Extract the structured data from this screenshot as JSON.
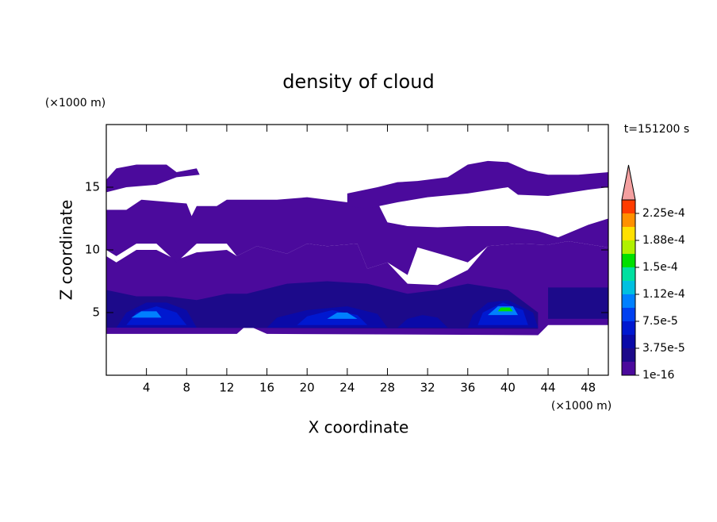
{
  "chart_data": {
    "type": "contour",
    "title": "density of cloud",
    "x_label": "X coordinate",
    "y_label": "Z coordinate",
    "x_unit": "(×1000 m)",
    "y_unit": "(×1000 m)",
    "time_label": "t=151200 s",
    "xlim": [
      0,
      50
    ],
    "ylim": [
      0,
      20
    ],
    "xticks": [
      4,
      8,
      12,
      16,
      20,
      24,
      28,
      32,
      36,
      40,
      44,
      48
    ],
    "yticks": [
      5,
      10,
      15
    ],
    "colorbar": {
      "levels": [
        1e-16,
        1.875e-05,
        3.75e-05,
        5.625e-05,
        7.5e-05,
        9.375e-05,
        0.0001125,
        0.00013125,
        0.00015,
        0.00016875,
        0.0001875,
        0.00020625,
        0.000225,
        0.00024375
      ],
      "colors": [
        "#4b0a9c",
        "#1c0a8a",
        "#0a0aa8",
        "#0018d0",
        "#0040f0",
        "#0080ff",
        "#00c0e0",
        "#00e0a0",
        "#00e000",
        "#b0f000",
        "#ffe000",
        "#ff9000",
        "#ff3c00"
      ],
      "extend_color": "#f4a0a0",
      "ticks": [
        {
          "value": 1e-16,
          "label": "1e-16"
        },
        {
          "value": 3.75e-05,
          "label": "3.75e-5"
        },
        {
          "value": 7.5e-05,
          "label": "7.5e-5"
        },
        {
          "value": 0.0001125,
          "label": "1.12e-4"
        },
        {
          "value": 0.00015,
          "label": "1.5e-4"
        },
        {
          "value": 0.0001875,
          "label": "1.88e-4"
        },
        {
          "value": 0.000225,
          "label": "2.25e-4"
        }
      ]
    },
    "regions": [
      {
        "value": 1e-16,
        "x": [
          0,
          13,
          14,
          16,
          43,
          44,
          50,
          50,
          46,
          44,
          41,
          38,
          36,
          33,
          30,
          28,
          26,
          25,
          22,
          20,
          18,
          15,
          13,
          12,
          9,
          7,
          5,
          3,
          1,
          0
        ],
        "y": [
          3.3,
          3.3,
          4,
          3.3,
          3.2,
          4,
          4,
          10.2,
          10.7,
          10.4,
          10.5,
          10.3,
          8.4,
          7.2,
          7.3,
          9,
          8.5,
          10.5,
          10.3,
          10.5,
          9.7,
          10.3,
          9.5,
          10,
          9.8,
          9.2,
          10,
          10,
          9,
          9.5
        ]
      },
      {
        "value": 1e-16,
        "x": [
          0,
          2,
          3.5,
          8,
          8.5,
          9,
          11,
          12,
          17,
          20,
          24,
          25,
          27,
          28,
          30,
          33,
          36,
          40,
          43,
          45,
          48,
          50,
          50,
          46,
          44,
          41,
          38,
          36,
          34,
          31,
          30,
          28,
          26,
          25,
          22,
          20,
          18,
          15,
          13,
          12,
          9,
          7,
          5,
          3,
          1,
          0
        ],
        "y": [
          13.2,
          13.2,
          14,
          13.7,
          12.7,
          13.5,
          13.5,
          14,
          14,
          14.2,
          13.8,
          14.1,
          13.8,
          12.2,
          11.9,
          11.8,
          11.9,
          11.9,
          11.5,
          11,
          12,
          12.5,
          10.2,
          10.7,
          10.4,
          10.5,
          10.3,
          9,
          9.5,
          10.2,
          8,
          9,
          8.5,
          10.5,
          10.3,
          10.5,
          9.7,
          10.3,
          9.5,
          10.5,
          10.5,
          9,
          10.5,
          10.5,
          9.5,
          10
        ]
      },
      {
        "value": 1e-16,
        "x": [
          0,
          1,
          3,
          6,
          7,
          9,
          9.3,
          7,
          5,
          2,
          0
        ],
        "y": [
          15.6,
          16.5,
          16.8,
          16.8,
          16.2,
          16.5,
          16,
          15.8,
          15.2,
          15,
          14.6
        ]
      },
      {
        "value": 1e-16,
        "x": [
          24,
          27,
          29,
          31,
          34,
          36,
          38,
          40,
          42,
          44,
          47,
          50,
          50,
          48,
          44,
          41,
          40,
          36,
          32,
          29,
          26,
          24
        ],
        "y": [
          14.5,
          15,
          15.4,
          15.5,
          15.8,
          16.8,
          17.1,
          17,
          16.3,
          16,
          16,
          16.2,
          15,
          14.8,
          14.3,
          14.4,
          15,
          14.5,
          14.2,
          13.8,
          13.3,
          13.5
        ]
      },
      {
        "value": 1.875e-05,
        "x": [
          0,
          43,
          43,
          40,
          36,
          33,
          30,
          26,
          22,
          18,
          14,
          12,
          9,
          6,
          3,
          0
        ],
        "y": [
          3.8,
          3.7,
          5,
          6.8,
          7.3,
          6.8,
          6.5,
          7.3,
          7.5,
          7.3,
          6.5,
          6.5,
          6,
          6.3,
          6.3,
          6.8
        ]
      },
      {
        "value": 1.875e-05,
        "x": [
          44,
          50,
          50,
          44
        ],
        "y": [
          4.5,
          4.5,
          7,
          7
        ]
      },
      {
        "value": 3.75e-05,
        "x": [
          1,
          9,
          8,
          6,
          4,
          2
        ],
        "y": [
          3.8,
          3.8,
          5.2,
          5.8,
          5.8,
          5
        ]
      },
      {
        "value": 3.75e-05,
        "x": [
          16,
          28,
          27,
          24,
          20,
          17
        ],
        "y": [
          3.8,
          3.8,
          4.9,
          5.5,
          5.2,
          4.6
        ]
      },
      {
        "value": 3.75e-05,
        "x": [
          29,
          34,
          33,
          31.5,
          30
        ],
        "y": [
          3.8,
          3.8,
          4.6,
          4.8,
          4.5
        ]
      },
      {
        "value": 3.75e-05,
        "x": [
          36,
          43,
          42.5,
          40,
          38,
          36.5
        ],
        "y": [
          3.8,
          3.8,
          5,
          6,
          5.8,
          4.8
        ]
      },
      {
        "value": 5.625e-05,
        "x": [
          2,
          8,
          7,
          5,
          3
        ],
        "y": [
          4,
          4,
          5,
          5.5,
          5
        ]
      },
      {
        "value": 5.625e-05,
        "x": [
          19,
          26,
          25,
          22.5,
          20
        ],
        "y": [
          4,
          4,
          4.8,
          5.2,
          4.7
        ]
      },
      {
        "value": 5.625e-05,
        "x": [
          37,
          42,
          41.5,
          39.5,
          37.5
        ],
        "y": [
          4,
          4,
          5.2,
          5.8,
          5
        ]
      },
      {
        "value": 9.375e-05,
        "x": [
          2.5,
          5.5,
          5,
          3.5
        ],
        "y": [
          4.6,
          4.6,
          5.1,
          5.1
        ]
      },
      {
        "value": 9.375e-05,
        "x": [
          22,
          25,
          24,
          23
        ],
        "y": [
          4.5,
          4.5,
          5,
          5
        ]
      },
      {
        "value": 9.375e-05,
        "x": [
          38,
          41,
          40.5,
          39
        ],
        "y": [
          4.8,
          4.8,
          5.5,
          5.5
        ]
      },
      {
        "value": 0.00015,
        "x": [
          39,
          40.5,
          40.2,
          39.3
        ],
        "y": [
          5.1,
          5.1,
          5.4,
          5.4
        ]
      }
    ]
  }
}
